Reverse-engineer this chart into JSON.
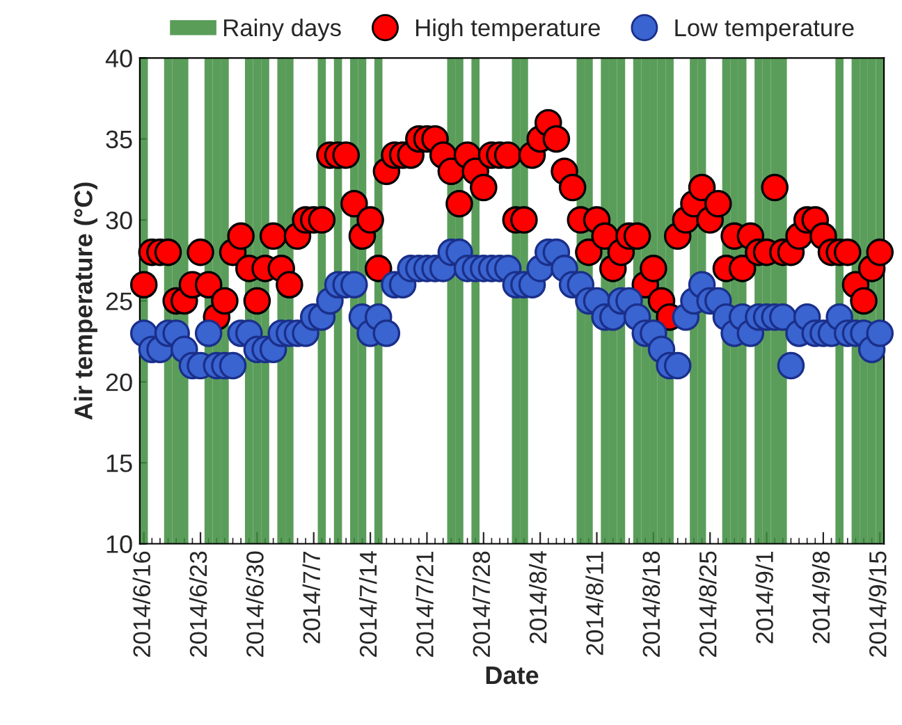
{
  "chart_data": {
    "type": "scatter",
    "xlabel": "Date",
    "ylabel": "Air temperature (°C)",
    "x": [
      "2014-06-16",
      "2014-06-17",
      "2014-06-18",
      "2014-06-19",
      "2014-06-20",
      "2014-06-21",
      "2014-06-22",
      "2014-06-23",
      "2014-06-24",
      "2014-06-25",
      "2014-06-26",
      "2014-06-27",
      "2014-06-28",
      "2014-06-29",
      "2014-06-30",
      "2014-07-01",
      "2014-07-02",
      "2014-07-03",
      "2014-07-04",
      "2014-07-05",
      "2014-07-06",
      "2014-07-07",
      "2014-07-08",
      "2014-07-09",
      "2014-07-10",
      "2014-07-11",
      "2014-07-12",
      "2014-07-13",
      "2014-07-14",
      "2014-07-15",
      "2014-07-16",
      "2014-07-17",
      "2014-07-18",
      "2014-07-19",
      "2014-07-20",
      "2014-07-21",
      "2014-07-22",
      "2014-07-23",
      "2014-07-24",
      "2014-07-25",
      "2014-07-26",
      "2014-07-27",
      "2014-07-28",
      "2014-07-29",
      "2014-07-30",
      "2014-07-31",
      "2014-08-01",
      "2014-08-02",
      "2014-08-03",
      "2014-08-04",
      "2014-08-05",
      "2014-08-06",
      "2014-08-07",
      "2014-08-08",
      "2014-08-09",
      "2014-08-10",
      "2014-08-11",
      "2014-08-12",
      "2014-08-13",
      "2014-08-14",
      "2014-08-15",
      "2014-08-16",
      "2014-08-17",
      "2014-08-18",
      "2014-08-19",
      "2014-08-20",
      "2014-08-21",
      "2014-08-22",
      "2014-08-23",
      "2014-08-24",
      "2014-08-25",
      "2014-08-26",
      "2014-08-27",
      "2014-08-28",
      "2014-08-29",
      "2014-08-30",
      "2014-08-31",
      "2014-09-01",
      "2014-09-02",
      "2014-09-03",
      "2014-09-04",
      "2014-09-05",
      "2014-09-06",
      "2014-09-07",
      "2014-09-08",
      "2014-09-09",
      "2014-09-10",
      "2014-09-11",
      "2014-09-12",
      "2014-09-13",
      "2014-09-14",
      "2014-09-15"
    ],
    "series": [
      {
        "name": "Rainy days",
        "type": "bar",
        "color": "#3d8c3d",
        "values": [
          40,
          null,
          null,
          40,
          40,
          40,
          null,
          null,
          40,
          40,
          40,
          null,
          null,
          40,
          40,
          40,
          null,
          40,
          40,
          null,
          null,
          null,
          40,
          null,
          40,
          null,
          40,
          40,
          null,
          40,
          null,
          null,
          null,
          null,
          null,
          null,
          null,
          null,
          40,
          40,
          null,
          40,
          null,
          null,
          null,
          null,
          40,
          40,
          null,
          null,
          null,
          null,
          null,
          null,
          40,
          40,
          null,
          40,
          40,
          40,
          null,
          40,
          40,
          40,
          40,
          40,
          null,
          null,
          40,
          40,
          null,
          null,
          40,
          40,
          40,
          null,
          40,
          40,
          40,
          40,
          null,
          null,
          null,
          null,
          null,
          null,
          40,
          null,
          40,
          40,
          40,
          40
        ]
      },
      {
        "name": "High temperature",
        "color": "#ff0000",
        "values": [
          26,
          28,
          28,
          28,
          25,
          25,
          26,
          28,
          26,
          24,
          25,
          28,
          29,
          27,
          25,
          27,
          29,
          27,
          26,
          29,
          30,
          30,
          30,
          34,
          34,
          34,
          31,
          29,
          30,
          27,
          33,
          34,
          34,
          34,
          35,
          35,
          35,
          34,
          33,
          31,
          34,
          33,
          32,
          34,
          34,
          34,
          30,
          30,
          34,
          35,
          36,
          35,
          33,
          32,
          30,
          28,
          30,
          29,
          27,
          28,
          29,
          29,
          26,
          27,
          25,
          24,
          29,
          30,
          31,
          32,
          30,
          31,
          27,
          29,
          27,
          29,
          28,
          28,
          32,
          28,
          28,
          29,
          30,
          30,
          29,
          28,
          28,
          28,
          26,
          25,
          27,
          28
        ]
      },
      {
        "name": "Low temperature",
        "color": "#3a64d0",
        "values": [
          23,
          22,
          22,
          23,
          23,
          22,
          21,
          21,
          23,
          21,
          21,
          21,
          23,
          23,
          22,
          22,
          22,
          23,
          23,
          23,
          23,
          24,
          24,
          25,
          26,
          26,
          26,
          24,
          23,
          24,
          23,
          26,
          26,
          27,
          27,
          27,
          27,
          27,
          28,
          28,
          27,
          27,
          27,
          27,
          27,
          27,
          26,
          26,
          26,
          27,
          28,
          28,
          27,
          26,
          26,
          25,
          25,
          24,
          24,
          25,
          25,
          24,
          23,
          23,
          22,
          21,
          21,
          24,
          25,
          26,
          25,
          25,
          24,
          23,
          24,
          23,
          24,
          24,
          24,
          24,
          21,
          23,
          24,
          23,
          23,
          23,
          24,
          23,
          23,
          23,
          22,
          23
        ]
      }
    ],
    "xlim": [
      "2014-06-16",
      "2014-09-15"
    ],
    "xticks": [
      {
        "value": "2014-06-16",
        "label": "2014/6/16"
      },
      {
        "value": "2014-06-23",
        "label": "2014/6/23"
      },
      {
        "value": "2014-06-30",
        "label": "2014/6/30"
      },
      {
        "value": "2014-07-07",
        "label": "2014/7/7"
      },
      {
        "value": "2014-07-14",
        "label": "2014/7/14"
      },
      {
        "value": "2014-07-21",
        "label": "2014/7/21"
      },
      {
        "value": "2014-07-28",
        "label": "2014/7/28"
      },
      {
        "value": "2014-08-04",
        "label": "2014/8/4"
      },
      {
        "value": "2014-08-11",
        "label": "2014/8/11"
      },
      {
        "value": "2014-08-18",
        "label": "2014/8/18"
      },
      {
        "value": "2014-08-25",
        "label": "2014/8/25"
      },
      {
        "value": "2014-09-01",
        "label": "2014/9/1"
      },
      {
        "value": "2014-09-08",
        "label": "2014/9/8"
      },
      {
        "value": "2014-09-15",
        "label": "2014/9/15"
      }
    ],
    "ylim": [
      10,
      40
    ],
    "yticks": [
      10,
      15,
      20,
      25,
      30,
      35,
      40
    ],
    "marker": "circle",
    "grid": false,
    "legend": "top"
  }
}
